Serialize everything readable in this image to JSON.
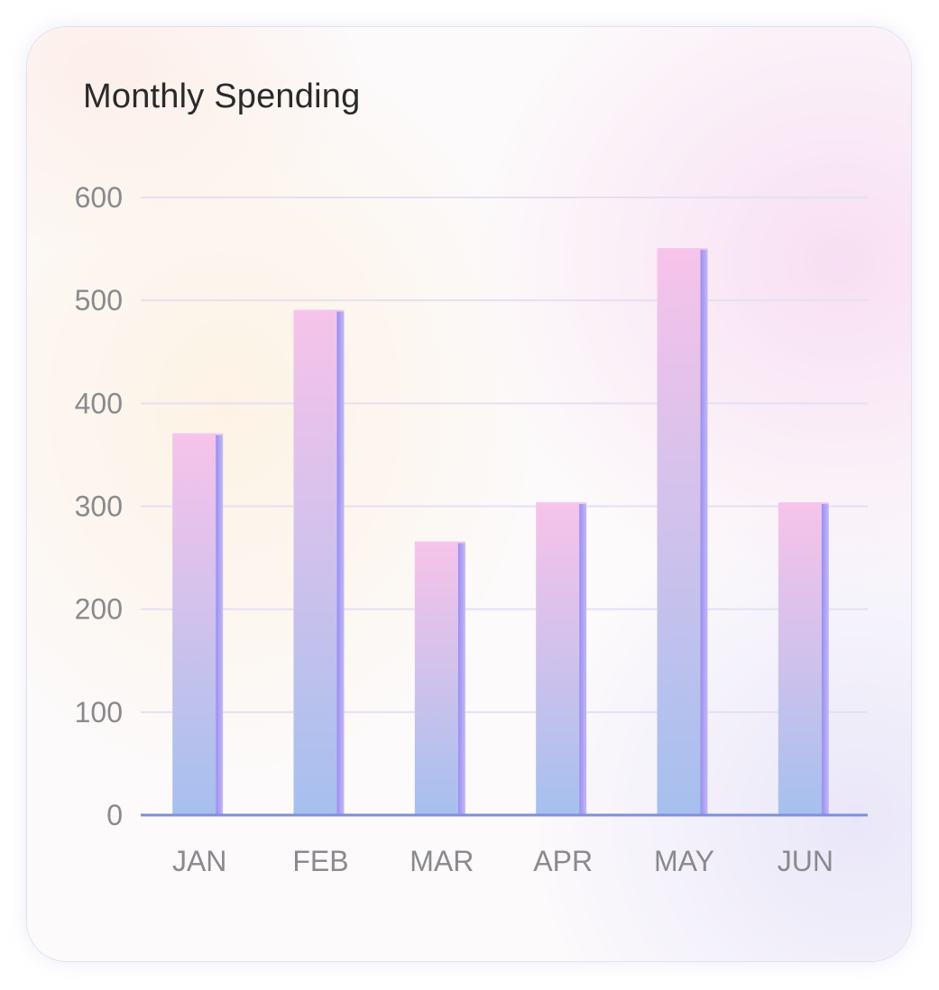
{
  "card": {
    "title": "Monthly Spending"
  },
  "chart_data": {
    "type": "bar",
    "title": "Monthly Spending",
    "categories": [
      "JAN",
      "FEB",
      "MAR",
      "APR",
      "MAY",
      "JUN"
    ],
    "values": [
      370,
      490,
      265,
      303,
      550,
      303
    ],
    "xlabel": "",
    "ylabel": "",
    "ylim": [
      0,
      600
    ],
    "yticks": [
      0,
      100,
      200,
      300,
      400,
      500,
      600
    ],
    "grid": true,
    "legend": "none",
    "colors": {
      "bar_top": "#f7c3ea",
      "bar_bottom": "#a6c0ee",
      "bar_side": "#9b8ff0",
      "grid": "#e4e0f2",
      "axis": "#7f8fe0",
      "tick_text": "#8a8a8e"
    }
  }
}
